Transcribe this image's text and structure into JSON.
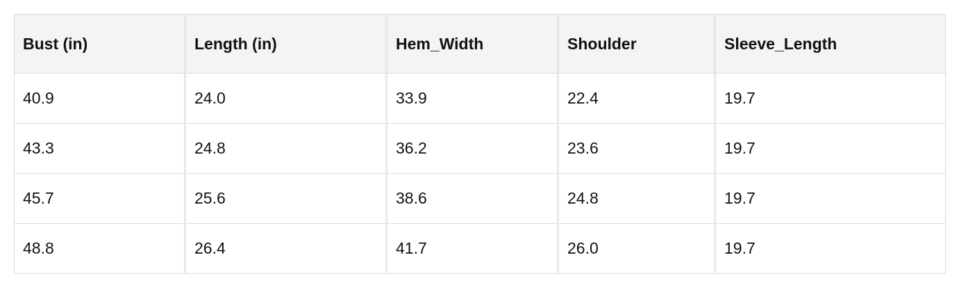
{
  "table": {
    "headers": [
      "Bust (in)",
      "Length (in)",
      "Hem_Width",
      "Shoulder",
      "Sleeve_Length"
    ],
    "rows": [
      [
        "40.9",
        "24.0",
        "33.9",
        "22.4",
        "19.7"
      ],
      [
        "43.3",
        "24.8",
        "36.2",
        "23.6",
        "19.7"
      ],
      [
        "45.7",
        "25.6",
        "38.6",
        "24.8",
        "19.7"
      ],
      [
        "48.8",
        "26.4",
        "41.7",
        "26.0",
        "19.7"
      ]
    ]
  }
}
